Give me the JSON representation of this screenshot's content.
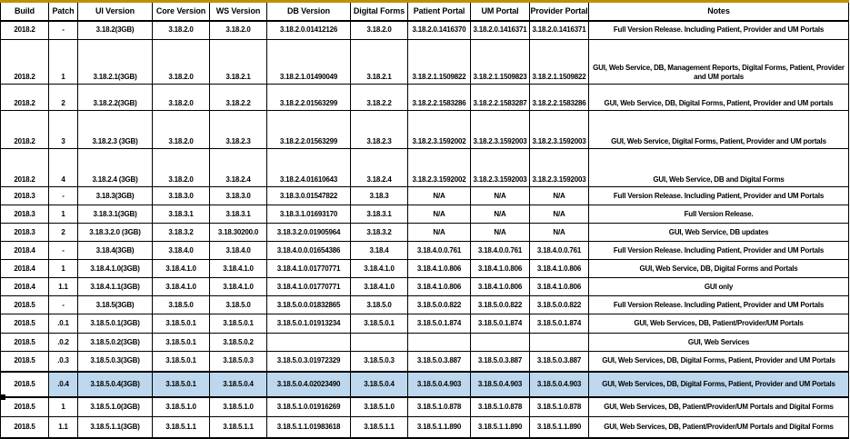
{
  "colors": {
    "accent_top_border": "#BF9000",
    "highlight_row": "#BDD7EE",
    "grid_border": "#000000",
    "text": "#000000"
  },
  "table": {
    "columns": [
      {
        "key": "build",
        "label": "Build"
      },
      {
        "key": "patch",
        "label": "Patch"
      },
      {
        "key": "ui",
        "label": "UI Version"
      },
      {
        "key": "core",
        "label": "Core Version"
      },
      {
        "key": "ws",
        "label": "WS Version"
      },
      {
        "key": "db",
        "label": "DB Version"
      },
      {
        "key": "df",
        "label": "Digital Forms"
      },
      {
        "key": "patient",
        "label": "Patient Portal"
      },
      {
        "key": "um",
        "label": "UM Portal"
      },
      {
        "key": "provider",
        "label": "Provider Portal"
      },
      {
        "key": "notes",
        "label": "Notes"
      }
    ],
    "rows": [
      {
        "h": 21,
        "tall": false,
        "highlight": false,
        "cells": [
          "2018.2",
          "-",
          "3.18.2(3GB)",
          "3.18.2.0",
          "3.18.2.0",
          "3.18.2.0.01412126",
          "3.18.2.0",
          "3.18.2.0.1416370",
          "3.18.2.0.1416371",
          "3.18.2.0.1416371",
          "Full Version Release. Including Patient, Provider and UM Portals"
        ]
      },
      {
        "h": 49,
        "tall": true,
        "highlight": false,
        "cells": [
          "2018.2",
          "1",
          "3.18.2.1(3GB)",
          "3.18.2.0",
          "3.18.2.1",
          "3.18.2.1.01490049",
          "3.18.2.1",
          "3.18.2.1.1509822",
          "3.18.2.1.1509823",
          "3.18.2.1.1509822",
          "GUI, Web Service, DB, Management Reports, Digital Forms, Patient, Provider and UM portals"
        ]
      },
      {
        "h": 29,
        "tall": true,
        "highlight": false,
        "cells": [
          "2018.2",
          "2",
          "3.18.2.2(3GB)",
          "3.18.2.0",
          "3.18.2.2",
          "3.18.2.2.01563299",
          "3.18.2.2",
          "3.18.2.2.1583286",
          "3.18.2.2.1583287",
          "3.18.2.2.1583286",
          "GUI, Web Service, DB, Digital Forms, Patient, Provider and UM portals"
        ]
      },
      {
        "h": 42,
        "tall": true,
        "highlight": false,
        "cells": [
          "2018.2",
          "3",
          "3.18.2.3 (3GB)",
          "3.18.2.0",
          "3.18.2.3",
          "3.18.2.2.01563299",
          "3.18.2.3",
          "3.18.2.3.1592002",
          "3.18.2.3.1592003",
          "3.18.2.3.1592003",
          "GUI, Web Service, Digital Forms, Patient, Provider and UM portals"
        ]
      },
      {
        "h": 42,
        "tall": true,
        "highlight": false,
        "cells": [
          "2018.2",
          "4",
          "3.18.2.4 (3GB)",
          "3.18.2.0",
          "3.18.2.4",
          "3.18.2.4.01610643",
          "3.18.2.4",
          "3.18.2.3.1592002",
          "3.18.2.3.1592003",
          "3.18.2.3.1592003",
          "GUI, Web Service, DB and Digital Forms"
        ]
      },
      {
        "h": 20,
        "tall": false,
        "highlight": false,
        "cells": [
          "2018.3",
          "-",
          "3.18.3(3GB)",
          "3.18.3.0",
          "3.18.3.0",
          "3.18.3.0.01547822",
          "3.18.3",
          "N/A",
          "N/A",
          "N/A",
          "Full Version Release. Including Patient, Provider and UM Portals"
        ]
      },
      {
        "h": 20,
        "tall": false,
        "highlight": false,
        "cells": [
          "2018.3",
          "1",
          "3.18.3.1(3GB)",
          "3.18.3.1",
          "3.18.3.1",
          "3.18.3.1.01693170",
          "3.18.3.1",
          "N/A",
          "N/A",
          "N/A",
          "Full Version Release."
        ]
      },
      {
        "h": 20,
        "tall": false,
        "highlight": false,
        "cells": [
          "2018.3",
          "2",
          "3.18.3.2.0 (3GB)",
          "3.18.3.2",
          "3.18.30200.0",
          "3.18.3.2.0.01905964",
          "3.18.3.2",
          "N/A",
          "N/A",
          "N/A",
          "GUI, Web Service, DB updates"
        ]
      },
      {
        "h": 20,
        "tall": false,
        "highlight": false,
        "cells": [
          "2018.4",
          "-",
          "3.18.4(3GB)",
          "3.18.4.0",
          "3.18.4.0",
          "3.18.4.0.0.01654386",
          "3.18.4",
          "3.18.4.0.0.761",
          "3.18.4.0.0.761",
          "3.18.4.0.0.761",
          "Full Version Release. Including Patient, Provider and UM Portals"
        ]
      },
      {
        "h": 20,
        "tall": false,
        "highlight": false,
        "cells": [
          "2018.4",
          "1",
          "3.18.4.1.0(3GB)",
          "3.18.4.1.0",
          "3.18.4.1.0",
          "3.18.4.1.0.01770771",
          "3.18.4.1.0",
          "3.18.4.1.0.806",
          "3.18.4.1.0.806",
          "3.18.4.1.0.806",
          "GUI, Web Service, DB, Digital Forms and Portals"
        ]
      },
      {
        "h": 20,
        "tall": false,
        "highlight": false,
        "cells": [
          "2018.4",
          "1.1",
          "3.18.4.1.1(3GB)",
          "3.18.4.1.0",
          "3.18.4.1.0",
          "3.18.4.1.0.01770771",
          "3.18.4.1.0",
          "3.18.4.1.0.806",
          "3.18.4.1.0.806",
          "3.18.4.1.0.806",
          "GUI only"
        ]
      },
      {
        "h": 20,
        "tall": false,
        "highlight": false,
        "cells": [
          "2018.5",
          "-",
          "3.18.5(3GB)",
          "3.18.5.0",
          "3.18.5.0",
          "3.18.5.0.0.01832865",
          "3.18.5.0",
          "3.18.5.0.0.822",
          "3.18.5.0.0.822",
          "3.18.5.0.0.822",
          "Full Version Release. Including Patient, Provider and UM Portals"
        ]
      },
      {
        "h": 21,
        "tall": false,
        "highlight": false,
        "cells": [
          "2018.5",
          ".0.1",
          "3.18.5.0.1(3GB)",
          "3.18.5.0.1",
          "3.18.5.0.1",
          "3.18.5.0.1.01913234",
          "3.18.5.0.1",
          "3.18.5.0.1.874",
          "3.18.5.0.1.874",
          "3.18.5.0.1.874",
          "GUI, Web Services, DB, Patient/Provider/UM Portals"
        ]
      },
      {
        "h": 20,
        "tall": false,
        "highlight": false,
        "cells": [
          "2018.5",
          ".0.2",
          "3.18.5.0.2(3GB)",
          "3.18.5.0.1",
          "3.18.5.0.2",
          "",
          "",
          "",
          "",
          "",
          "GUI, Web Services"
        ]
      },
      {
        "h": 22,
        "tall": false,
        "highlight": false,
        "cells": [
          "2018.5",
          ".0.3",
          "3.18.5.0.3(3GB)",
          "3.18.5.0.1",
          "3.18.5.0.3",
          "3.18.5.0.3.01972329",
          "3.18.5.0.3",
          "3.18.5.0.3.887",
          "3.18.5.0.3.887",
          "3.18.5.0.3.887",
          "GUI, Web Services, DB, Digital Forms, Patient, Provider and UM Portals"
        ]
      },
      {
        "h": 28,
        "tall": false,
        "highlight": true,
        "cells": [
          "2018.5",
          ".0.4",
          "3.18.5.0.4(3GB)",
          "3.18.5.0.1",
          "3.18.5.0.4",
          "3.18.5.0.4.02023490",
          "3.18.5.0.4",
          "3.18.5.0.4.903",
          "3.18.5.0.4.903",
          "3.18.5.0.4.903",
          "GUI, Web Services, DB, Digital Forms, Patient, Provider and UM Portals"
        ]
      },
      {
        "h": 22,
        "tall": false,
        "highlight": false,
        "cells": [
          "2018.5",
          "1",
          "3.18.5.1.0(3GB)",
          "3.18.5.1.0",
          "3.18.5.1.0",
          "3.18.5.1.0.01916269",
          "3.18.5.1.0",
          "3.18.5.1.0.878",
          "3.18.5.1.0.878",
          "3.18.5.1.0.878",
          "GUI, Web Services, DB, Patient/Provider/UM Portals and Digital Forms"
        ]
      },
      {
        "h": 23,
        "tall": false,
        "highlight": false,
        "cells": [
          "2018.5",
          "1.1",
          "3.18.5.1.1(3GB)",
          "3.18.5.1.1",
          "3.18.5.1.1",
          "3.18.5.1.1.01983618",
          "3.18.5.1.1",
          "3.18.5.1.1.890",
          "3.18.5.1.1.890",
          "3.18.5.1.1.890",
          "GUI, Web Services, DB, Patient/Provider/UM Portals and Digital Forms"
        ]
      }
    ]
  }
}
